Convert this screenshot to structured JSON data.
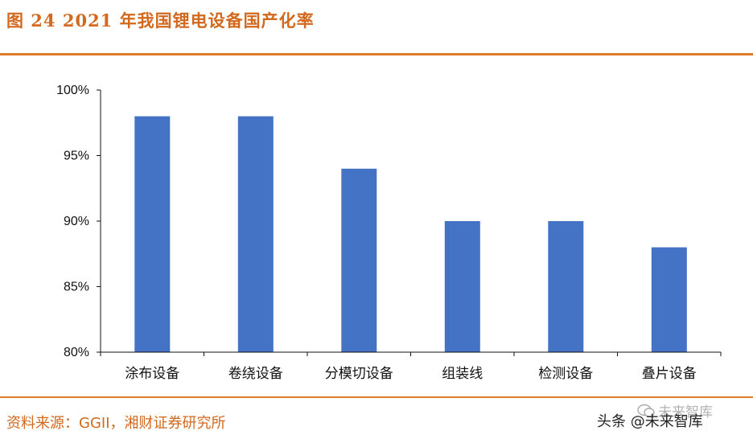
{
  "header": {
    "title": "图 24 2021 年我国锂电设备国产化率"
  },
  "footer": {
    "source": "资料来源：GGII，湘财证券研究所"
  },
  "watermark": {
    "top_text": "未来智库",
    "main_text": "头条 @未来智库"
  },
  "colors": {
    "accent": "#E07B2A",
    "bar": "#4472C4"
  },
  "chart_data": {
    "type": "bar",
    "title": "",
    "xlabel": "",
    "ylabel": "",
    "categories": [
      "涂布设备",
      "卷绕设备",
      "分模切设备",
      "组装线",
      "检测设备",
      "叠片设备"
    ],
    "values": [
      98,
      98,
      94,
      90,
      90,
      88
    ],
    "ylim": [
      80,
      100
    ],
    "yticks": [
      "80%",
      "85%",
      "90%",
      "95%",
      "100%"
    ],
    "grid": false,
    "legend": "none"
  }
}
